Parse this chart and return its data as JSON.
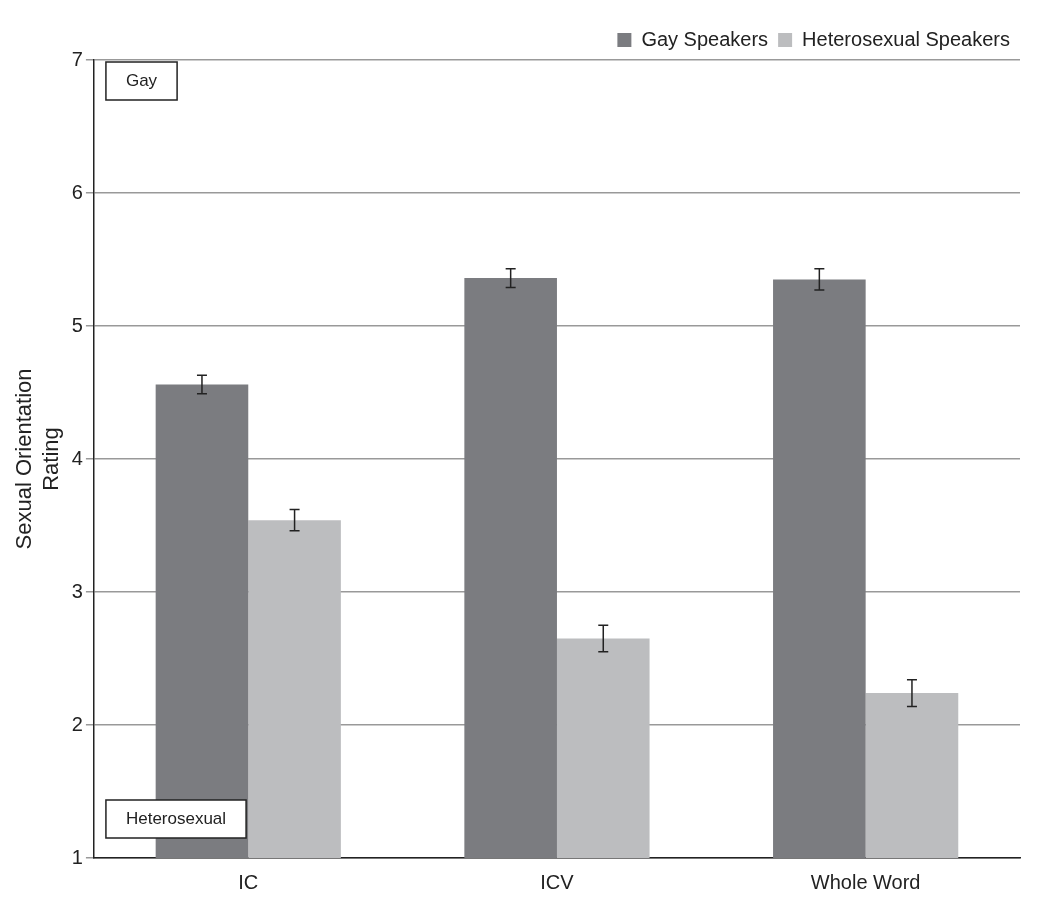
{
  "chart_data": {
    "type": "bar",
    "ylabel": "Sexual Orientation Rating",
    "categories": [
      "IC",
      "ICV",
      "Whole Word"
    ],
    "series": [
      {
        "name": "Gay Speakers",
        "color": "#7b7c80",
        "values": [
          4.56,
          5.36,
          5.35
        ],
        "errors": [
          0.07,
          0.07,
          0.08
        ]
      },
      {
        "name": "Heterosexual Speakers",
        "color": "#bcbdbf",
        "values": [
          3.54,
          2.65,
          2.24
        ],
        "errors": [
          0.08,
          0.1,
          0.1
        ]
      }
    ],
    "ylim": [
      1,
      7
    ],
    "yticks": [
      1,
      2,
      3,
      4,
      5,
      6,
      7
    ],
    "grid": "y",
    "legend": "top right",
    "annotations": [
      "Gay",
      "Heterosexual"
    ]
  }
}
